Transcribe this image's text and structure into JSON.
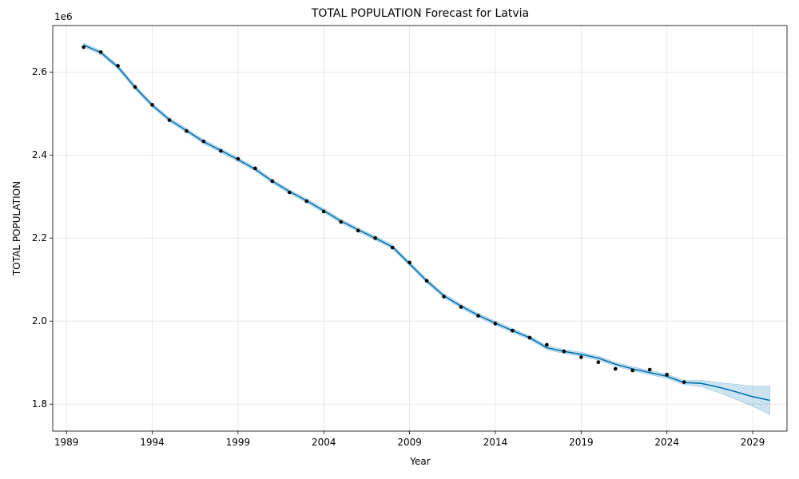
{
  "chart_data": {
    "type": "line",
    "title": "TOTAL POPULATION Forecast for Latvia",
    "xlabel": "Year",
    "ylabel": "TOTAL POPULATION",
    "y_offset_label": "1e6",
    "xlim": [
      1988.2,
      2031.0
    ],
    "ylim": [
      1.735,
      2.712
    ],
    "x_ticks": [
      1989,
      1994,
      1999,
      2004,
      2009,
      2014,
      2019,
      2024,
      2029
    ],
    "y_ticks": [
      1.8,
      2.0,
      2.2,
      2.4,
      2.6
    ],
    "y_tick_labels": [
      "1.8",
      "2.0",
      "2.2",
      "2.4",
      "2.6"
    ],
    "grid": true,
    "colors": {
      "forecast": "#0072B2",
      "band": "#0072B2",
      "observed": "#000000"
    },
    "observed": {
      "x": [
        1990,
        1991,
        1992,
        1993,
        1994,
        1995,
        1996,
        1997,
        1998,
        1999,
        2000,
        2001,
        2002,
        2003,
        2004,
        2005,
        2006,
        2007,
        2008,
        2009,
        2010,
        2011,
        2012,
        2013,
        2014,
        2015,
        2016,
        2017,
        2018,
        2019,
        2020,
        2021,
        2022,
        2023,
        2024,
        2025
      ],
      "y": [
        2.66,
        2.648,
        2.615,
        2.564,
        2.521,
        2.484,
        2.458,
        2.433,
        2.41,
        2.391,
        2.368,
        2.337,
        2.31,
        2.289,
        2.264,
        2.239,
        2.218,
        2.2,
        2.177,
        2.141,
        2.097,
        2.059,
        2.034,
        2.013,
        1.994,
        1.977,
        1.96,
        1.943,
        1.927,
        1.913,
        1.901,
        1.885,
        1.881,
        1.883,
        1.871,
        1.853
      ]
    },
    "forecast": {
      "x": [
        1990,
        1991,
        1992,
        1993,
        1994,
        1995,
        1996,
        1997,
        1998,
        1999,
        2000,
        2001,
        2002,
        2003,
        2004,
        2005,
        2006,
        2007,
        2008,
        2009,
        2010,
        2011,
        2012,
        2013,
        2014,
        2015,
        2016,
        2017,
        2018,
        2019,
        2020,
        2021,
        2022,
        2023,
        2024,
        2025,
        2026,
        2027,
        2028,
        2029,
        2030
      ],
      "yhat": [
        2.665,
        2.647,
        2.612,
        2.563,
        2.52,
        2.485,
        2.459,
        2.432,
        2.411,
        2.389,
        2.366,
        2.337,
        2.312,
        2.29,
        2.266,
        2.241,
        2.22,
        2.2,
        2.179,
        2.138,
        2.097,
        2.061,
        2.036,
        2.014,
        1.995,
        1.977,
        1.96,
        1.936,
        1.927,
        1.92,
        1.911,
        1.896,
        1.885,
        1.876,
        1.867,
        1.852,
        1.85,
        1.841,
        1.83,
        1.818,
        1.809
      ],
      "lower": [
        2.66,
        2.642,
        2.607,
        2.558,
        2.515,
        2.48,
        2.454,
        2.427,
        2.406,
        2.384,
        2.361,
        2.332,
        2.307,
        2.285,
        2.261,
        2.236,
        2.215,
        2.195,
        2.174,
        2.133,
        2.092,
        2.056,
        2.031,
        2.009,
        1.99,
        1.972,
        1.955,
        1.931,
        1.922,
        1.915,
        1.906,
        1.891,
        1.88,
        1.871,
        1.862,
        1.847,
        1.842,
        1.828,
        1.812,
        1.795,
        1.775
      ],
      "upper": [
        2.67,
        2.652,
        2.617,
        2.568,
        2.525,
        2.49,
        2.464,
        2.437,
        2.416,
        2.394,
        2.371,
        2.342,
        2.317,
        2.295,
        2.271,
        2.246,
        2.225,
        2.205,
        2.184,
        2.143,
        2.102,
        2.066,
        2.041,
        2.019,
        2.0,
        1.982,
        1.965,
        1.941,
        1.932,
        1.925,
        1.916,
        1.901,
        1.89,
        1.881,
        1.872,
        1.857,
        1.857,
        1.852,
        1.848,
        1.843,
        1.843
      ]
    }
  }
}
